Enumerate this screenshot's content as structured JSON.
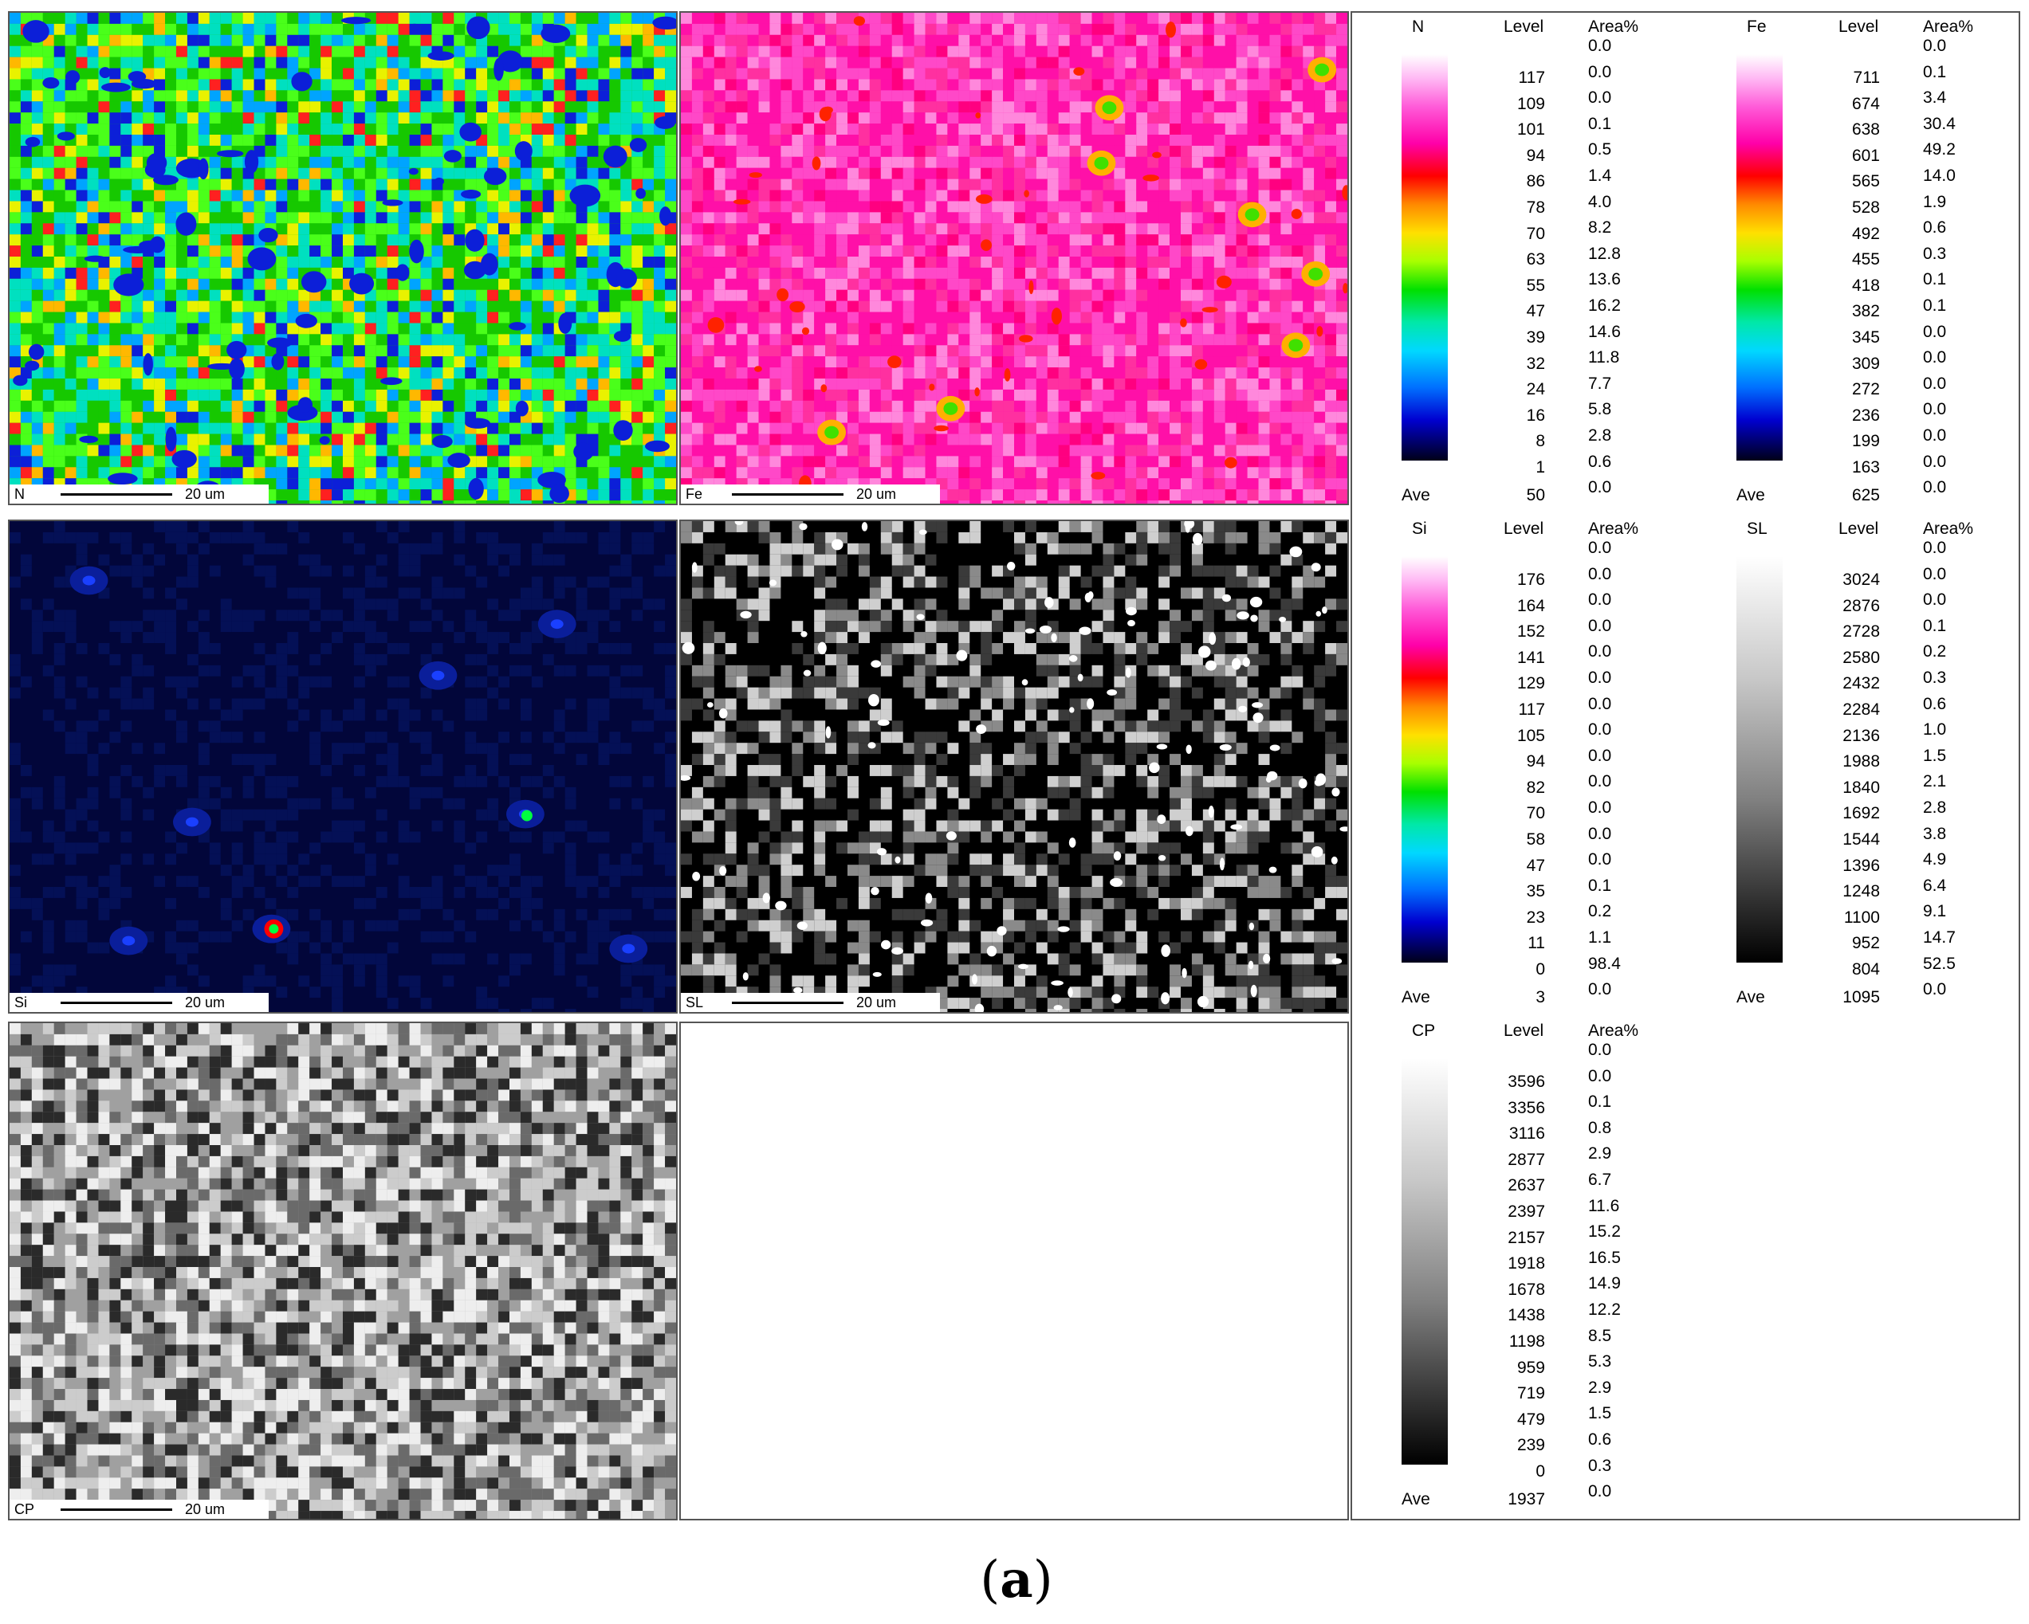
{
  "maps": [
    {
      "element": "N",
      "scale": "20 um",
      "style": "noise-rainbow",
      "colors": [
        "#16c800",
        "#4aff1a",
        "#00e0c0",
        "#00a4ff",
        "#0c1fd8",
        "#e9f200",
        "#ffb800",
        "#ff2020"
      ]
    },
    {
      "element": "Fe",
      "scale": "20 um",
      "style": "noise-pink",
      "colors": [
        "#ff10a8",
        "#ff48c8",
        "#ff88dc",
        "#ff0080",
        "#ff30a0",
        "#ff2200",
        "#ffb000",
        "#40e000"
      ]
    },
    {
      "element": "Si",
      "scale": "20 um",
      "style": "dark-blue",
      "colors": [
        "#02063a",
        "#041056",
        "#0a1e9a",
        "#1a40ff",
        "#3c7dff",
        "#ff0000",
        "#00ff40"
      ]
    },
    {
      "element": "SL",
      "scale": "20 um",
      "style": "gray-speckle",
      "colors": [
        "#000000",
        "#3a3a3a",
        "#8a8a8a",
        "#cfcfcf",
        "#ffffff"
      ]
    },
    {
      "element": "CP",
      "scale": "20 um",
      "style": "gray-noise",
      "colors": [
        "#2a2a2a",
        "#6a6a6a",
        "#a0a0a0",
        "#cccccc",
        "#eeeeee"
      ]
    }
  ],
  "legend_headers": {
    "level": "Level",
    "area": "Area%",
    "ave": "Ave"
  },
  "legends": [
    {
      "element": "N",
      "gradient": "rainbow",
      "levels": [
        "117",
        "109",
        "101",
        "94",
        "86",
        "78",
        "70",
        "63",
        "55",
        "47",
        "39",
        "32",
        "24",
        "16",
        "8",
        "1"
      ],
      "areas": [
        "0.0",
        "0.0",
        "0.0",
        "0.1",
        "0.5",
        "1.4",
        "4.0",
        "8.2",
        "12.8",
        "13.6",
        "16.2",
        "14.6",
        "11.8",
        "7.7",
        "5.8",
        "2.8",
        "0.6",
        "0.0"
      ],
      "ave": "50"
    },
    {
      "element": "Fe",
      "gradient": "rainbow",
      "levels": [
        "711",
        "674",
        "638",
        "601",
        "565",
        "528",
        "492",
        "455",
        "418",
        "382",
        "345",
        "309",
        "272",
        "236",
        "199",
        "163"
      ],
      "areas": [
        "0.0",
        "0.1",
        "3.4",
        "30.4",
        "49.2",
        "14.0",
        "1.9",
        "0.6",
        "0.3",
        "0.1",
        "0.1",
        "0.0",
        "0.0",
        "0.0",
        "0.0",
        "0.0",
        "0.0",
        "0.0"
      ],
      "ave": "625"
    },
    {
      "element": "Si",
      "gradient": "rainbow",
      "levels": [
        "176",
        "164",
        "152",
        "141",
        "129",
        "117",
        "105",
        "94",
        "82",
        "70",
        "58",
        "47",
        "35",
        "23",
        "11",
        "0"
      ],
      "areas": [
        "0.0",
        "0.0",
        "0.0",
        "0.0",
        "0.0",
        "0.0",
        "0.0",
        "0.0",
        "0.0",
        "0.0",
        "0.0",
        "0.0",
        "0.0",
        "0.1",
        "0.2",
        "1.1",
        "98.4",
        "0.0"
      ],
      "ave": "3"
    },
    {
      "element": "SL",
      "gradient": "gray",
      "levels": [
        "3024",
        "2876",
        "2728",
        "2580",
        "2432",
        "2284",
        "2136",
        "1988",
        "1840",
        "1692",
        "1544",
        "1396",
        "1248",
        "1100",
        "952",
        "804"
      ],
      "areas": [
        "0.0",
        "0.0",
        "0.0",
        "0.1",
        "0.2",
        "0.3",
        "0.6",
        "1.0",
        "1.5",
        "2.1",
        "2.8",
        "3.8",
        "4.9",
        "6.4",
        "9.1",
        "14.7",
        "52.5",
        "0.0"
      ],
      "ave": "1095"
    },
    {
      "element": "CP",
      "gradient": "gray",
      "levels": [
        "3596",
        "3356",
        "3116",
        "2877",
        "2637",
        "2397",
        "2157",
        "1918",
        "1678",
        "1438",
        "1198",
        "959",
        "719",
        "479",
        "239",
        "0"
      ],
      "areas": [
        "0.0",
        "0.0",
        "0.1",
        "0.8",
        "2.9",
        "6.7",
        "11.6",
        "15.2",
        "16.5",
        "14.9",
        "12.2",
        "8.5",
        "5.3",
        "2.9",
        "1.5",
        "0.6",
        "0.3",
        "0.0"
      ],
      "ave": "1937"
    }
  ],
  "caption": {
    "open": "(",
    "letter": "a",
    "close": ")"
  }
}
